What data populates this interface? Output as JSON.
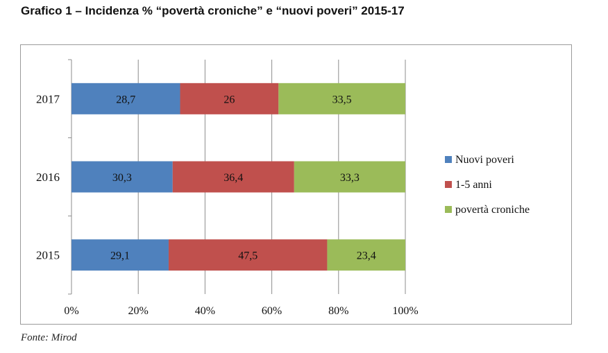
{
  "title": "Grafico 1 – Incidenza % “povertà croniche” e “nuovi poveri” 2015-17",
  "source": "Fonte: Mirod",
  "chart_data": {
    "type": "bar",
    "orientation": "horizontal",
    "stacked": "percent",
    "categories": [
      "2015",
      "2016",
      "2017"
    ],
    "series": [
      {
        "name": "Nuovi poveri",
        "color": "#4f81bd",
        "values": [
          29.1,
          30.3,
          28.7
        ],
        "labels": [
          "29,1",
          "30,3",
          "28,7"
        ]
      },
      {
        "name": "1-5 anni",
        "color": "#c0504d",
        "values": [
          47.5,
          36.4,
          26
        ],
        "labels": [
          "47,5",
          "36,4",
          "26"
        ]
      },
      {
        "name": "povertà croniche",
        "color": "#9bbb59",
        "values": [
          23.4,
          33.3,
          33.5
        ],
        "labels": [
          "23,4",
          "33,3",
          "33,5"
        ]
      }
    ],
    "x_ticks": [
      "0%",
      "20%",
      "40%",
      "60%",
      "80%",
      "100%"
    ],
    "xlim": [
      0,
      100
    ],
    "grid": true,
    "legend": "right"
  }
}
